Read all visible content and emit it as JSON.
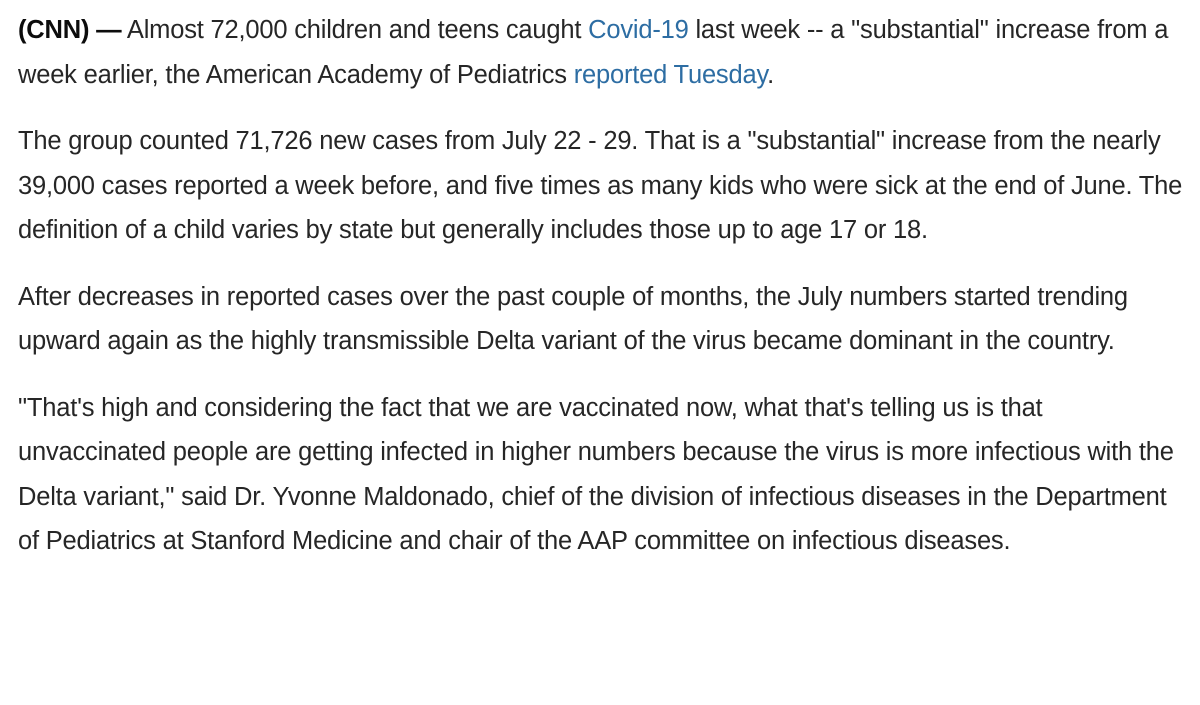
{
  "article": {
    "p1": {
      "dateline": "(CNN) —",
      "text1": " Almost 72,000 children and teens caught ",
      "link1": "Covid-19",
      "text2": " last week -- a \"substantial\" increase from a week earlier, the American Academy of Pediatrics ",
      "link2": "reported Tuesday",
      "text3": "."
    },
    "p2": "The group counted 71,726 new cases from July 22 - 29. That is a \"substantial\" increase from the nearly 39,000 cases reported a week before, and five times as many kids who were sick at the end of June. The definition of a child varies by state but generally includes those up to age 17 or 18.",
    "p3": "After decreases in reported cases over the past couple of months, the July numbers started trending upward again as the highly transmissible Delta variant of the virus became dominant in the country.",
    "p4": "\"That's high and considering the fact that we are vaccinated now, what that's telling us is that unvaccinated people are getting infected in higher numbers because the virus is more infectious with the Delta variant,\" said Dr. Yvonne Maldonado, chief of the division of infectious diseases in the Department of Pediatrics at Stanford Medicine and chair of the AAP committee on infectious diseases."
  },
  "colors": {
    "text": "#262626",
    "link": "#2d6da3",
    "background": "#ffffff"
  }
}
